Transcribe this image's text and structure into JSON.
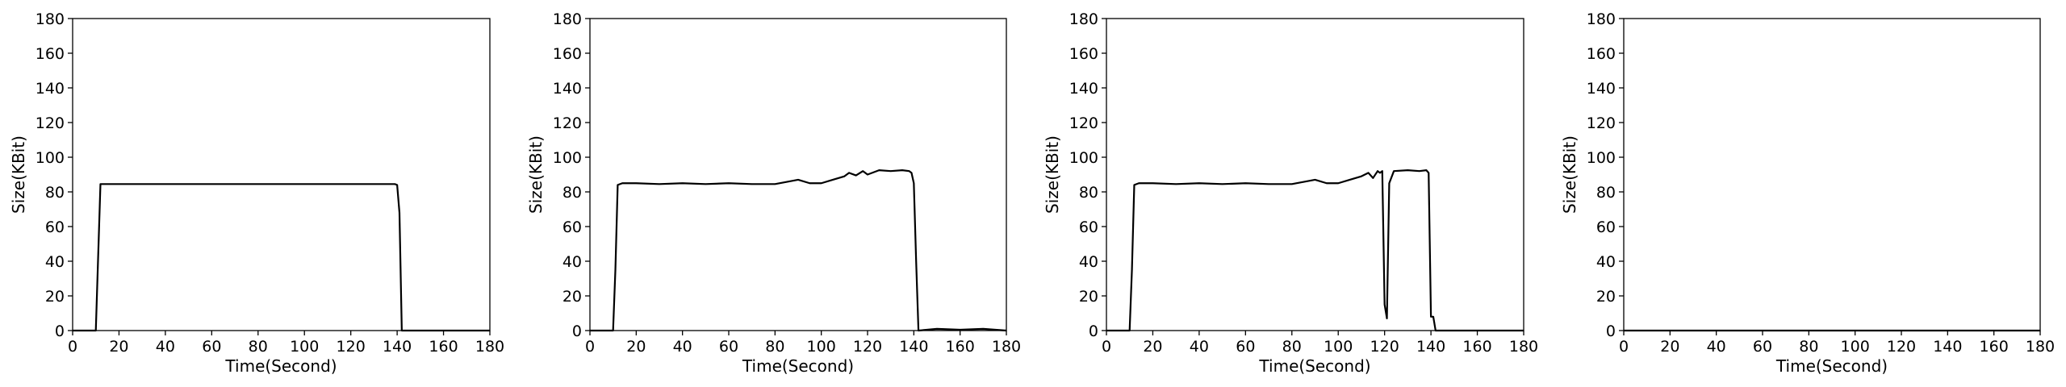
{
  "chart_data": [
    {
      "type": "line",
      "xlabel": "Time(Second)",
      "ylabel": "Size(KBit)",
      "xlim": [
        0,
        180
      ],
      "ylim": [
        0,
        180
      ],
      "xticks": [
        0,
        20,
        40,
        60,
        80,
        100,
        120,
        140,
        160,
        180
      ],
      "yticks": [
        0,
        20,
        40,
        60,
        80,
        100,
        120,
        140,
        160,
        180
      ],
      "grid": false,
      "line_color": "#000000",
      "x": [
        0,
        10,
        12,
        20,
        40,
        60,
        80,
        100,
        120,
        139,
        140,
        141,
        142,
        150,
        160,
        170,
        180
      ],
      "y": [
        0,
        0,
        84.5,
        84.5,
        84.5,
        84.5,
        84.5,
        84.5,
        84.5,
        84.5,
        84,
        68,
        0,
        0,
        0,
        0,
        0
      ]
    },
    {
      "type": "line",
      "xlabel": "Time(Second)",
      "ylabel": "Size(KBit)",
      "xlim": [
        0,
        180
      ],
      "ylim": [
        0,
        180
      ],
      "xticks": [
        0,
        20,
        40,
        60,
        80,
        100,
        120,
        140,
        160,
        180
      ],
      "yticks": [
        0,
        20,
        40,
        60,
        80,
        100,
        120,
        140,
        160,
        180
      ],
      "grid": false,
      "line_color": "#000000",
      "x": [
        0,
        10,
        11,
        12,
        14,
        20,
        30,
        40,
        50,
        60,
        70,
        80,
        90,
        95,
        100,
        105,
        110,
        112,
        115,
        118,
        120,
        125,
        130,
        135,
        138,
        139,
        140,
        141,
        142,
        150,
        160,
        170,
        180
      ],
      "y": [
        0,
        0,
        35,
        84,
        85,
        85,
        84.5,
        85,
        84.5,
        85,
        84.5,
        84.5,
        87,
        85,
        85,
        87,
        89,
        91,
        89.5,
        92,
        90,
        92.5,
        92,
        92.5,
        92,
        91,
        85,
        40,
        0,
        1,
        0.5,
        1,
        0
      ]
    },
    {
      "type": "line",
      "xlabel": "Time(Second)",
      "ylabel": "Size(KBit)",
      "xlim": [
        0,
        180
      ],
      "ylim": [
        0,
        180
      ],
      "xticks": [
        0,
        20,
        40,
        60,
        80,
        100,
        120,
        140,
        160,
        180
      ],
      "yticks": [
        0,
        20,
        40,
        60,
        80,
        100,
        120,
        140,
        160,
        180
      ],
      "grid": false,
      "line_color": "#000000",
      "x": [
        0,
        10,
        11,
        12,
        14,
        20,
        30,
        40,
        50,
        60,
        70,
        80,
        90,
        95,
        100,
        105,
        110,
        113,
        115,
        117,
        118,
        119,
        120,
        121,
        122,
        124,
        130,
        135,
        138,
        139,
        140,
        141,
        142,
        150,
        160,
        170,
        180
      ],
      "y": [
        0,
        0,
        35,
        84,
        85,
        85,
        84.5,
        85,
        84.5,
        85,
        84.5,
        84.5,
        87,
        85,
        85,
        87,
        89,
        91,
        88,
        92,
        91,
        92,
        15,
        7,
        85,
        92,
        92.5,
        92,
        92.5,
        91,
        8,
        8,
        0,
        0,
        0,
        0,
        0
      ]
    },
    {
      "type": "line",
      "xlabel": "Time(Second)",
      "ylabel": "Size(KBit)",
      "xlim": [
        0,
        180
      ],
      "ylim": [
        0,
        180
      ],
      "xticks": [
        0,
        20,
        40,
        60,
        80,
        100,
        120,
        140,
        160,
        180
      ],
      "yticks": [
        0,
        20,
        40,
        60,
        80,
        100,
        120,
        140,
        160,
        180
      ],
      "grid": false,
      "line_color": "#000000",
      "x": [
        0,
        180
      ],
      "y": [
        0,
        0
      ]
    }
  ]
}
